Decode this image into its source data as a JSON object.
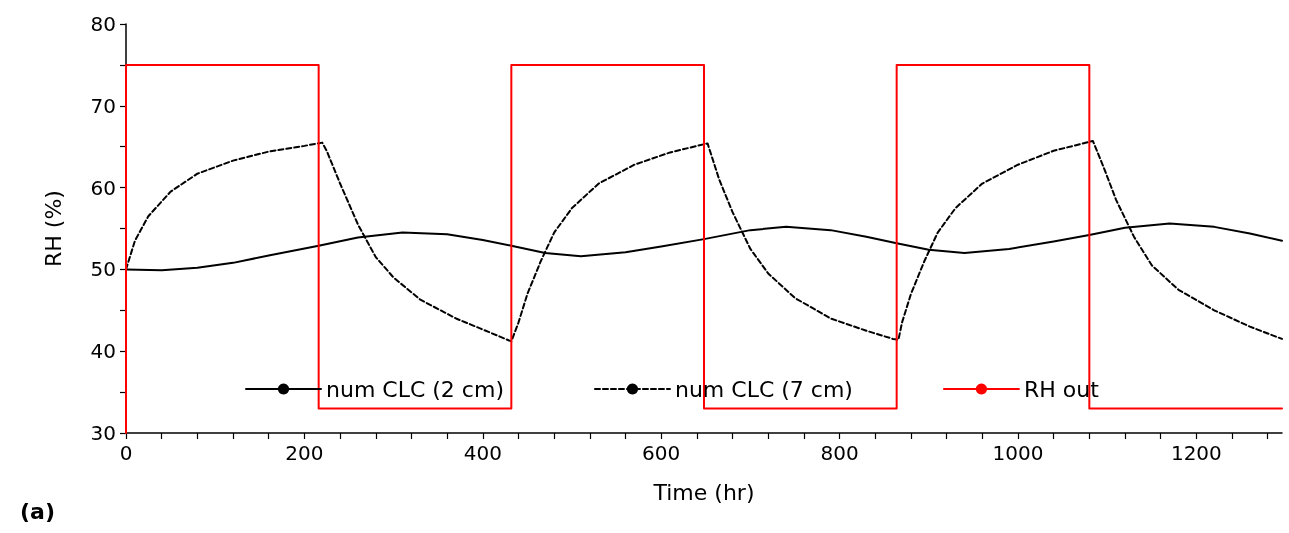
{
  "chart_data": {
    "type": "line",
    "xlabel": "Time (hr)",
    "ylabel": "RH (%)",
    "xlim": [
      0,
      1296
    ],
    "ylim": [
      30,
      80
    ],
    "xticks": [
      0,
      {
        "value": 40,
        "label": null
      },
      {
        "value": 80,
        "label": null
      },
      {
        "value": 120,
        "label": null
      },
      {
        "value": 160,
        "label": null
      },
      200,
      {
        "value": 240,
        "label": null
      },
      {
        "value": 280,
        "label": null
      },
      {
        "value": 320,
        "label": null
      },
      {
        "value": 360,
        "label": null
      },
      400,
      {
        "value": 440,
        "label": null
      },
      {
        "value": 480,
        "label": null
      },
      {
        "value": 520,
        "label": null
      },
      {
        "value": 560,
        "label": null
      },
      600,
      {
        "value": 640,
        "label": null
      },
      {
        "value": 680,
        "label": null
      },
      {
        "value": 720,
        "label": null
      },
      {
        "value": 760,
        "label": null
      },
      800,
      {
        "value": 840,
        "label": null
      },
      {
        "value": 880,
        "label": null
      },
      {
        "value": 920,
        "label": null
      },
      {
        "value": 960,
        "label": null
      },
      1000,
      {
        "value": 1040,
        "label": null
      },
      {
        "value": 1080,
        "label": null
      },
      {
        "value": 1120,
        "label": null
      },
      {
        "value": 1160,
        "label": null
      },
      1200,
      {
        "value": 1240,
        "label": null
      },
      {
        "value": 1280,
        "label": null
      }
    ],
    "yticks": [
      30,
      {
        "value": 35,
        "label": null
      },
      40,
      {
        "value": 45,
        "label": null
      },
      50,
      {
        "value": 55,
        "label": null
      },
      60,
      {
        "value": 65,
        "label": null
      },
      70,
      {
        "value": 75,
        "label": null
      },
      80
    ],
    "grid": false,
    "legend": "bottom",
    "marker": "none",
    "annotations": [
      "(a)"
    ],
    "series": [
      {
        "name": "num CLC (2 cm)",
        "color": "#000000",
        "line_style": "solid",
        "x": [
          0,
          40,
          80,
          120,
          160,
          216,
          260,
          310,
          360,
          400,
          432,
          470,
          510,
          560,
          600,
          648,
          700,
          740,
          790,
          830,
          864,
          900,
          940,
          990,
          1040,
          1080,
          1120,
          1170,
          1220,
          1260,
          1296
        ],
        "values": [
          50,
          49.9,
          50.2,
          50.8,
          51.7,
          52.9,
          53.9,
          54.5,
          54.3,
          53.6,
          52.9,
          52,
          51.6,
          52.1,
          52.8,
          53.7,
          54.8,
          55.2,
          54.8,
          54,
          53.2,
          52.4,
          52,
          52.5,
          53.4,
          54.2,
          55.1,
          55.6,
          55.2,
          54.4,
          53.5
        ]
      },
      {
        "name": "num CLC (7 cm)",
        "color": "#000000",
        "line_style": "dashed",
        "x": [
          0,
          10,
          25,
          50,
          80,
          120,
          160,
          200,
          220,
          225,
          240,
          260,
          280,
          300,
          330,
          370,
          410,
          432,
          440,
          450,
          465,
          480,
          500,
          530,
          570,
          610,
          648,
          652,
          665,
          680,
          700,
          720,
          750,
          790,
          830,
          860,
          866,
          870,
          880,
          895,
          910,
          930,
          960,
          1000,
          1040,
          1084,
          1096,
          1110,
          1130,
          1150,
          1180,
          1220,
          1260,
          1296
        ],
        "values": [
          50,
          53.5,
          56.5,
          59.5,
          61.7,
          63.3,
          64.4,
          65.1,
          65.5,
          64.5,
          60.5,
          55.5,
          51.5,
          49,
          46.3,
          44,
          42.2,
          41.2,
          43.5,
          47,
          51,
          54.5,
          57.5,
          60.5,
          62.8,
          64.3,
          65.3,
          65.4,
          61,
          57,
          52.5,
          49.5,
          46.5,
          44,
          42.5,
          41.5,
          41.4,
          43.5,
          47,
          51,
          54.5,
          57.5,
          60.5,
          62.8,
          64.5,
          65.7,
          62.5,
          58.5,
          54,
          50.5,
          47.5,
          45,
          43,
          41.5
        ]
      },
      {
        "name": "RH out",
        "color": "#ff0000",
        "line_style": "solid",
        "x": [
          0,
          0,
          216,
          216,
          432,
          432,
          648,
          648,
          864,
          864,
          1080,
          1080,
          1296
        ],
        "values": [
          30,
          75,
          75,
          33,
          33,
          75,
          75,
          33,
          33,
          75,
          75,
          33,
          33
        ]
      }
    ]
  }
}
